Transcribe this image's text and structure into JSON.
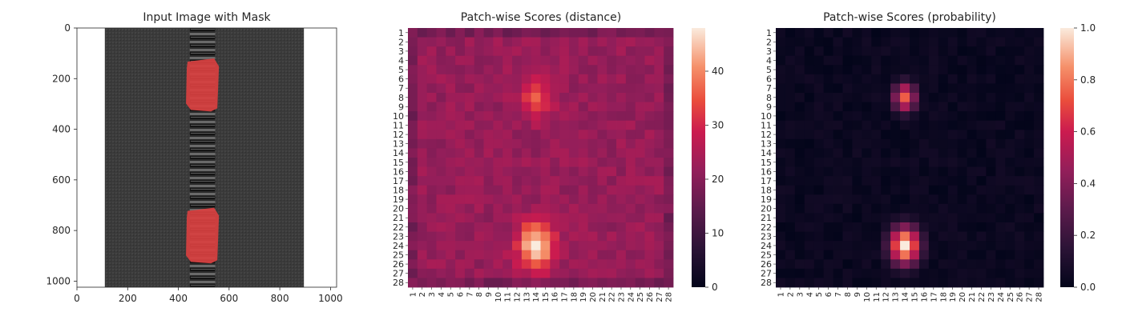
{
  "chart_data": [
    {
      "type": "image",
      "title": "Input Image with Mask",
      "xlim": [
        0,
        1024
      ],
      "ylim": [
        1024,
        0
      ],
      "xticks": [
        0,
        200,
        400,
        600,
        800,
        1000
      ],
      "yticks": [
        0,
        200,
        400,
        600,
        800,
        1000
      ],
      "colors": {
        "background": "#ffffff",
        "zipper_fabric": "#3a3a3a",
        "teeth": "#1c1c1c",
        "mask": "#d94040"
      },
      "mask_regions": [
        {
          "label": "top defect",
          "x": [
            430,
            560
          ],
          "y": [
            120,
            330
          ]
        },
        {
          "label": "bottom defect",
          "x": [
            430,
            560
          ],
          "y": [
            710,
            930
          ]
        }
      ]
    },
    {
      "type": "heatmap",
      "title": "Patch-wise Scores (distance)",
      "rows": [
        "1",
        "2",
        "3",
        "4",
        "5",
        "6",
        "7",
        "8",
        "9",
        "10",
        "11",
        "12",
        "13",
        "14",
        "15",
        "16",
        "17",
        "18",
        "19",
        "20",
        "21",
        "22",
        "23",
        "24",
        "25",
        "26",
        "27",
        "28"
      ],
      "cols": [
        "1",
        "2",
        "3",
        "4",
        "5",
        "6",
        "7",
        "8",
        "9",
        "10",
        "11",
        "12",
        "13",
        "14",
        "15",
        "16",
        "17",
        "18",
        "19",
        "20",
        "21",
        "22",
        "23",
        "24",
        "25",
        "26",
        "27",
        "28"
      ],
      "colorbar": {
        "range": [
          0,
          48
        ],
        "ticks": [
          "0",
          "10",
          "20",
          "30",
          "40"
        ],
        "tick_values": [
          0,
          10,
          20,
          30,
          40
        ],
        "cmap": "rocket"
      },
      "base_value": 22,
      "hotspots": [
        {
          "row": 8,
          "col": 14,
          "peak": 37,
          "spread": 1.6
        },
        {
          "row": 24,
          "col": 14,
          "peak": 48,
          "spread": 1.9
        }
      ]
    },
    {
      "type": "heatmap",
      "title": "Patch-wise Scores (probability)",
      "rows": [
        "1",
        "2",
        "3",
        "4",
        "5",
        "6",
        "7",
        "8",
        "9",
        "10",
        "11",
        "12",
        "13",
        "14",
        "15",
        "16",
        "17",
        "18",
        "19",
        "20",
        "21",
        "22",
        "23",
        "24",
        "25",
        "26",
        "27",
        "28"
      ],
      "cols": [
        "1",
        "2",
        "3",
        "4",
        "5",
        "6",
        "7",
        "8",
        "9",
        "10",
        "11",
        "12",
        "13",
        "14",
        "15",
        "16",
        "17",
        "18",
        "19",
        "20",
        "21",
        "22",
        "23",
        "24",
        "25",
        "26",
        "27",
        "28"
      ],
      "colorbar": {
        "range": [
          0,
          1
        ],
        "ticks": [
          "0.0",
          "0.2",
          "0.4",
          "0.6",
          "0.8",
          "1.0"
        ],
        "tick_values": [
          0,
          0.2,
          0.4,
          0.6,
          0.8,
          1.0
        ],
        "cmap": "rocket"
      },
      "base_value": 0.02,
      "hotspots": [
        {
          "row": 8,
          "col": 14,
          "peak": 0.75,
          "spread": 1.2
        },
        {
          "row": 24,
          "col": 14,
          "peak": 1.0,
          "spread": 1.6
        }
      ]
    }
  ]
}
